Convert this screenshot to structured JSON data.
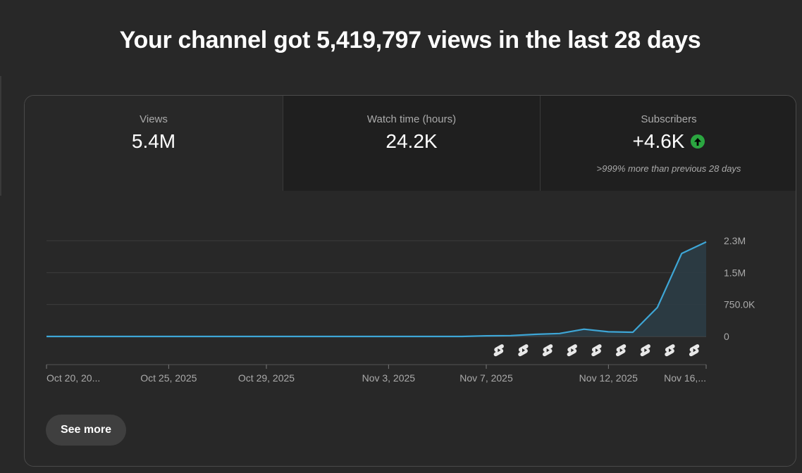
{
  "headline": "Your channel got 5,419,797 views in the last 28 days",
  "tabs": [
    {
      "label": "Views",
      "value": "5.4M"
    },
    {
      "label": "Watch time (hours)",
      "value": "24.2K"
    },
    {
      "label": "Subscribers",
      "value": "+4.6K",
      "note": ">999% more than previous 28 days",
      "trend_icon": "arrow-up-icon"
    }
  ],
  "see_more_label": "See more",
  "colors": {
    "line": "#3ea6d6",
    "area": "#2c3d46",
    "trend_up": "#2ba640"
  },
  "chart_data": {
    "type": "area",
    "ylim": [
      0,
      2250000
    ],
    "yticks": [
      {
        "value": 0,
        "label": "0"
      },
      {
        "value": 750000,
        "label": "750.0K"
      },
      {
        "value": 1500000,
        "label": "1.5M"
      },
      {
        "value": 2250000,
        "label": "2.3M"
      }
    ],
    "xticks": [
      {
        "index": 0,
        "label": "Oct 20, 20..."
      },
      {
        "index": 5,
        "label": "Oct 25, 2025"
      },
      {
        "index": 9,
        "label": "Oct 29, 2025"
      },
      {
        "index": 14,
        "label": "Nov 3, 2025"
      },
      {
        "index": 18,
        "label": "Nov 7, 2025"
      },
      {
        "index": 23,
        "label": "Nov 12, 2025"
      },
      {
        "index": 27,
        "label": "Nov 16,..."
      }
    ],
    "x": [
      "Oct 20",
      "Oct 21",
      "Oct 22",
      "Oct 23",
      "Oct 24",
      "Oct 25",
      "Oct 26",
      "Oct 27",
      "Oct 28",
      "Oct 29",
      "Oct 30",
      "Oct 31",
      "Nov 1",
      "Nov 2",
      "Nov 3",
      "Nov 4",
      "Nov 5",
      "Nov 6",
      "Nov 7",
      "Nov 8",
      "Nov 9",
      "Nov 10",
      "Nov 11",
      "Nov 12",
      "Nov 13",
      "Nov 14",
      "Nov 15",
      "Nov 16"
    ],
    "values": [
      0,
      0,
      0,
      0,
      0,
      0,
      0,
      0,
      0,
      0,
      0,
      0,
      0,
      0,
      0,
      0,
      0,
      0,
      15000,
      20000,
      50000,
      70000,
      170000,
      110000,
      100000,
      680000,
      1950000,
      2220000
    ],
    "shorts_markers": [
      "Nov 8",
      "Nov 9",
      "Nov 10",
      "Nov 11",
      "Nov 12",
      "Nov 13",
      "Nov 14",
      "Nov 15",
      "Nov 16"
    ],
    "marker_icon": "shorts-icon",
    "grid": true
  }
}
